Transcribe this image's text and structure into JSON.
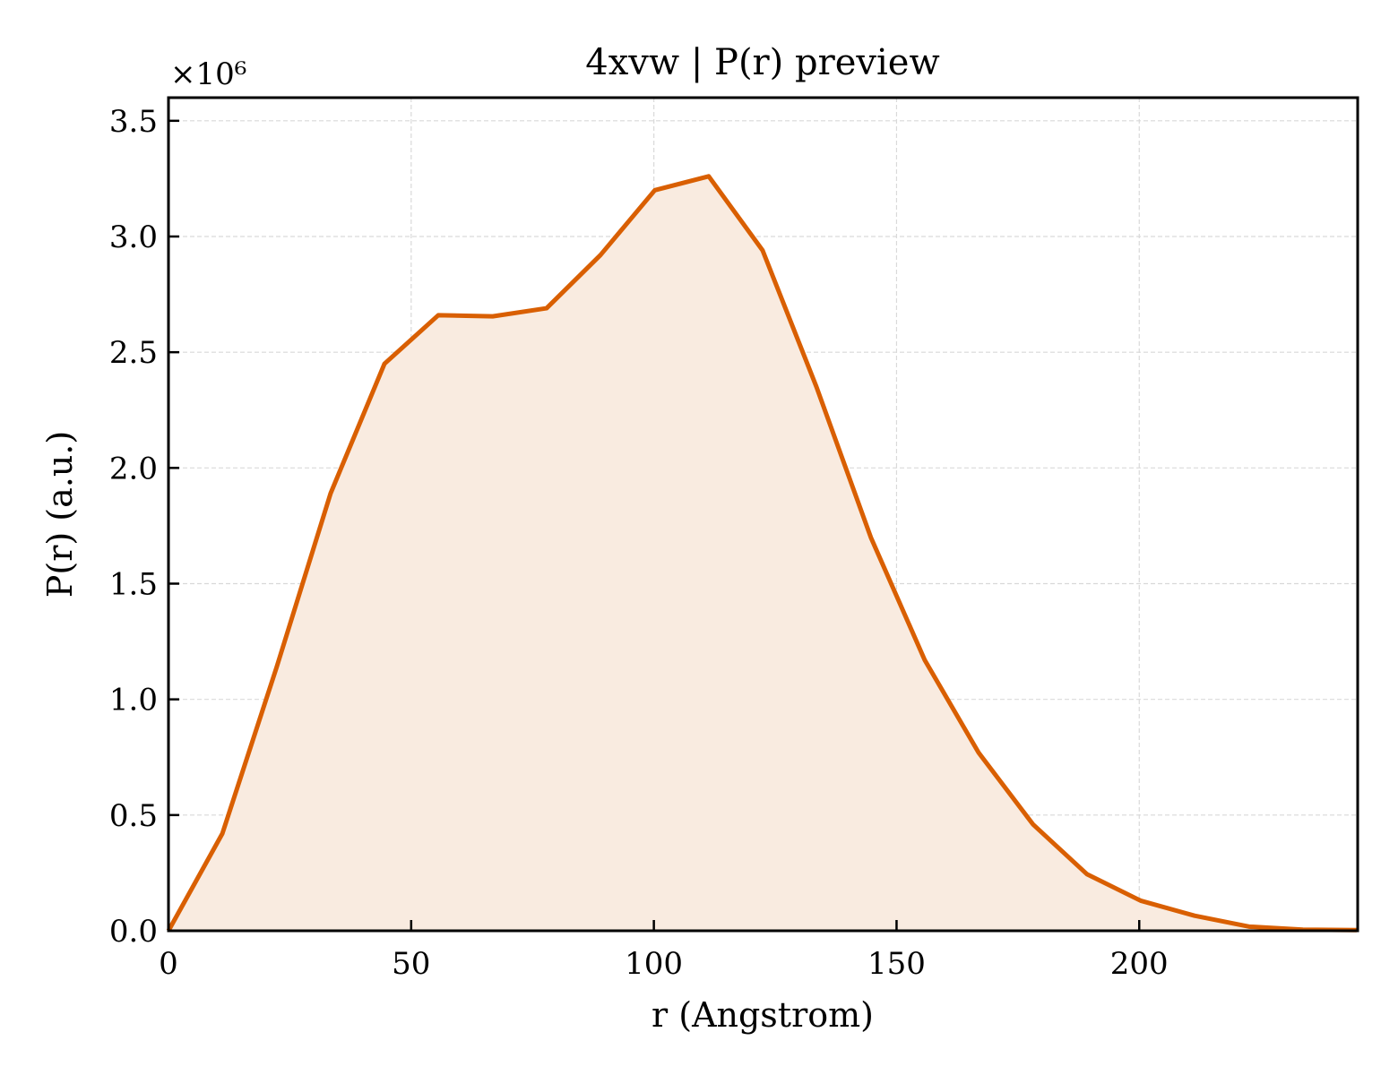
{
  "chart_data": {
    "type": "area",
    "title": "4xvw | P(r) preview",
    "xlabel": "r (Angstrom)",
    "ylabel": "P(r) (a.u.)",
    "y_offset_label": "×10⁶",
    "xlim": [
      0,
      245
    ],
    "ylim": [
      0,
      3.6
    ],
    "y_scale_multiplier": 1000000,
    "x_ticks": [
      0,
      50,
      100,
      150,
      200
    ],
    "x_tick_labels": [
      "0",
      "50",
      "100",
      "150",
      "200"
    ],
    "y_ticks": [
      0.0,
      0.5,
      1.0,
      1.5,
      2.0,
      2.5,
      3.0,
      3.5
    ],
    "y_tick_labels": [
      "0.0",
      "0.5",
      "1.0",
      "1.5",
      "2.0",
      "2.5",
      "3.0",
      "3.5"
    ],
    "grid": true,
    "legend": "none",
    "colors": {
      "line": "#d95f02",
      "fill": "#f9ebe0",
      "grid": "#d9d9d9",
      "axes": "#000000"
    },
    "x": [
      0,
      11.1,
      22.3,
      33.4,
      44.5,
      55.6,
      66.8,
      77.9,
      89.0,
      100.2,
      111.3,
      122.4,
      133.5,
      144.7,
      155.8,
      166.9,
      178.1,
      189.2,
      200.3,
      211.4,
      222.6,
      233.7,
      244.8
    ],
    "y": [
      0.0,
      0.42,
      1.14,
      1.89,
      2.45,
      2.66,
      2.655,
      2.69,
      2.92,
      3.2,
      3.26,
      2.94,
      2.35,
      1.7,
      1.17,
      0.77,
      0.46,
      0.245,
      0.13,
      0.065,
      0.018,
      0.005,
      0.003
    ]
  }
}
